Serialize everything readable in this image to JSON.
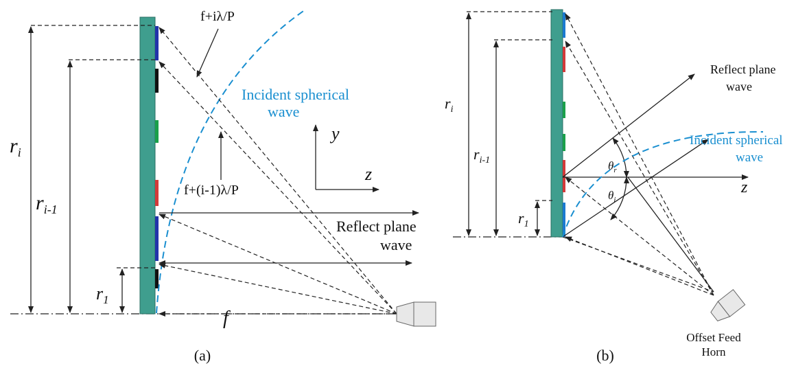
{
  "panel_a": {
    "caption": "(a)",
    "formula_top": "f+iλ/P",
    "formula_mid": "f+(i-1)λ/P",
    "incident": [
      "Incident spherical",
      "wave"
    ],
    "reflect": [
      "Reflect plane",
      "wave"
    ],
    "axis_y": "y",
    "axis_z": "z",
    "focal": "f",
    "r_i": {
      "main": "r",
      "sub": "i"
    },
    "r_i1": {
      "main": "r",
      "sub": "i-1"
    },
    "r_1": {
      "main": "r",
      "sub": "1"
    }
  },
  "panel_b": {
    "caption": "(b)",
    "reflect": [
      "Reflect plane",
      "wave"
    ],
    "incident": [
      "Incident spherical",
      "wave"
    ],
    "axis_z": "z",
    "theta_r": {
      "main": "θ",
      "sub": "r"
    },
    "theta_i": {
      "main": "θ",
      "sub": "i"
    },
    "r_i": {
      "main": "r",
      "sub": "i"
    },
    "r_i1": {
      "main": "r",
      "sub": "i-1"
    },
    "r_1": {
      "main": "r",
      "sub": "1"
    },
    "feed": [
      "Offset Feed",
      "Horn"
    ]
  }
}
